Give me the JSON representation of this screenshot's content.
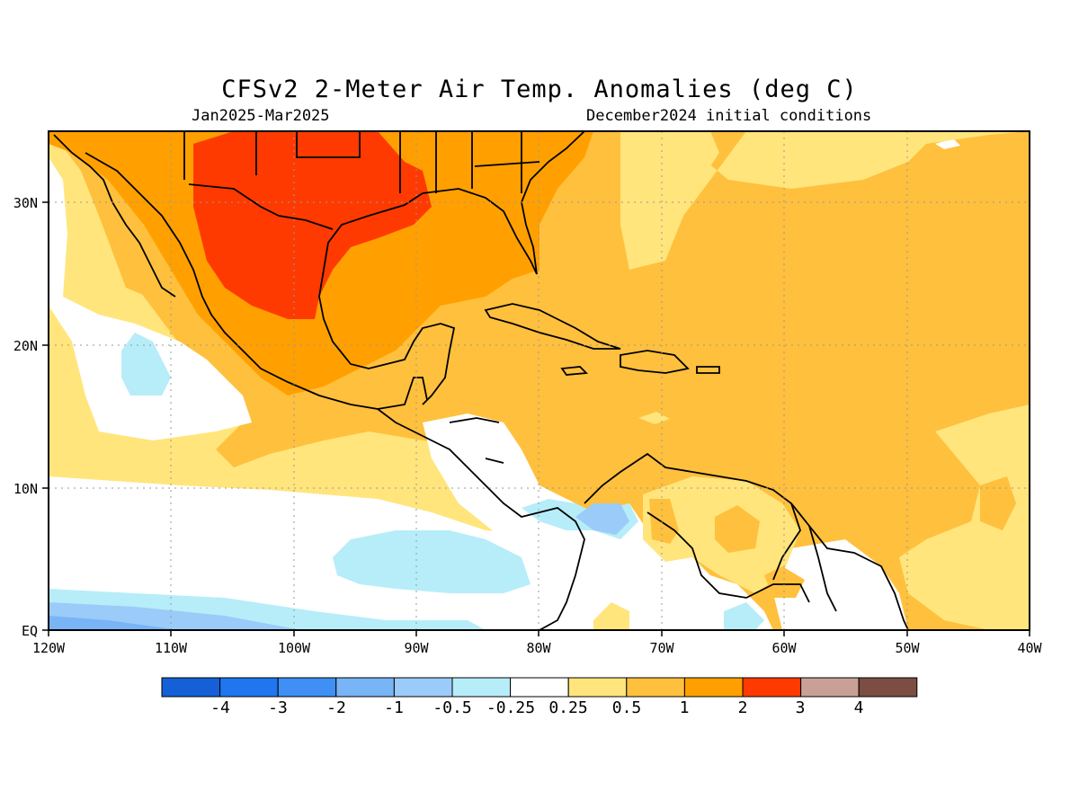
{
  "map": {
    "title": "CFSv2 2-Meter Air Temp. Anomalies (deg C)",
    "subtitle_left": "Jan2025-Mar2025",
    "subtitle_right": "December2024 initial conditions",
    "lon_labels": [
      "120W",
      "110W",
      "100W",
      "90W",
      "80W",
      "70W",
      "60W",
      "50W",
      "40W"
    ],
    "lat_labels": [
      "30N",
      "20N",
      "10N",
      "EQ"
    ],
    "colorbar": {
      "labels": [
        "-4",
        "-3",
        "-2",
        "-1",
        "-0.5",
        "-0.25",
        "0.25",
        "0.5",
        "1",
        "2",
        "3",
        "4"
      ],
      "colors": [
        "#1560d6",
        "#1f76ee",
        "#3f8ff5",
        "#78b4f6",
        "#9bcbf8",
        "#b6edf9",
        "#ffffff",
        "#ffe57c",
        "#ffc03d",
        "#ffa000",
        "#ff3a00",
        "#c9a096",
        "#7b4d43"
      ]
    },
    "anomaly_fill_colors": {
      "ocean_base": "#ffc03d",
      "band_0_25_0_5": "#ffe57c",
      "band_1_2": "#ffa000",
      "band_2_3": "#ff3a00",
      "near_zero": "#ffffff",
      "neg_0_25_0_5": "#b6edf9",
      "neg_0_5_1": "#9bcbf8",
      "neg_1_2": "#78b4f6"
    }
  }
}
